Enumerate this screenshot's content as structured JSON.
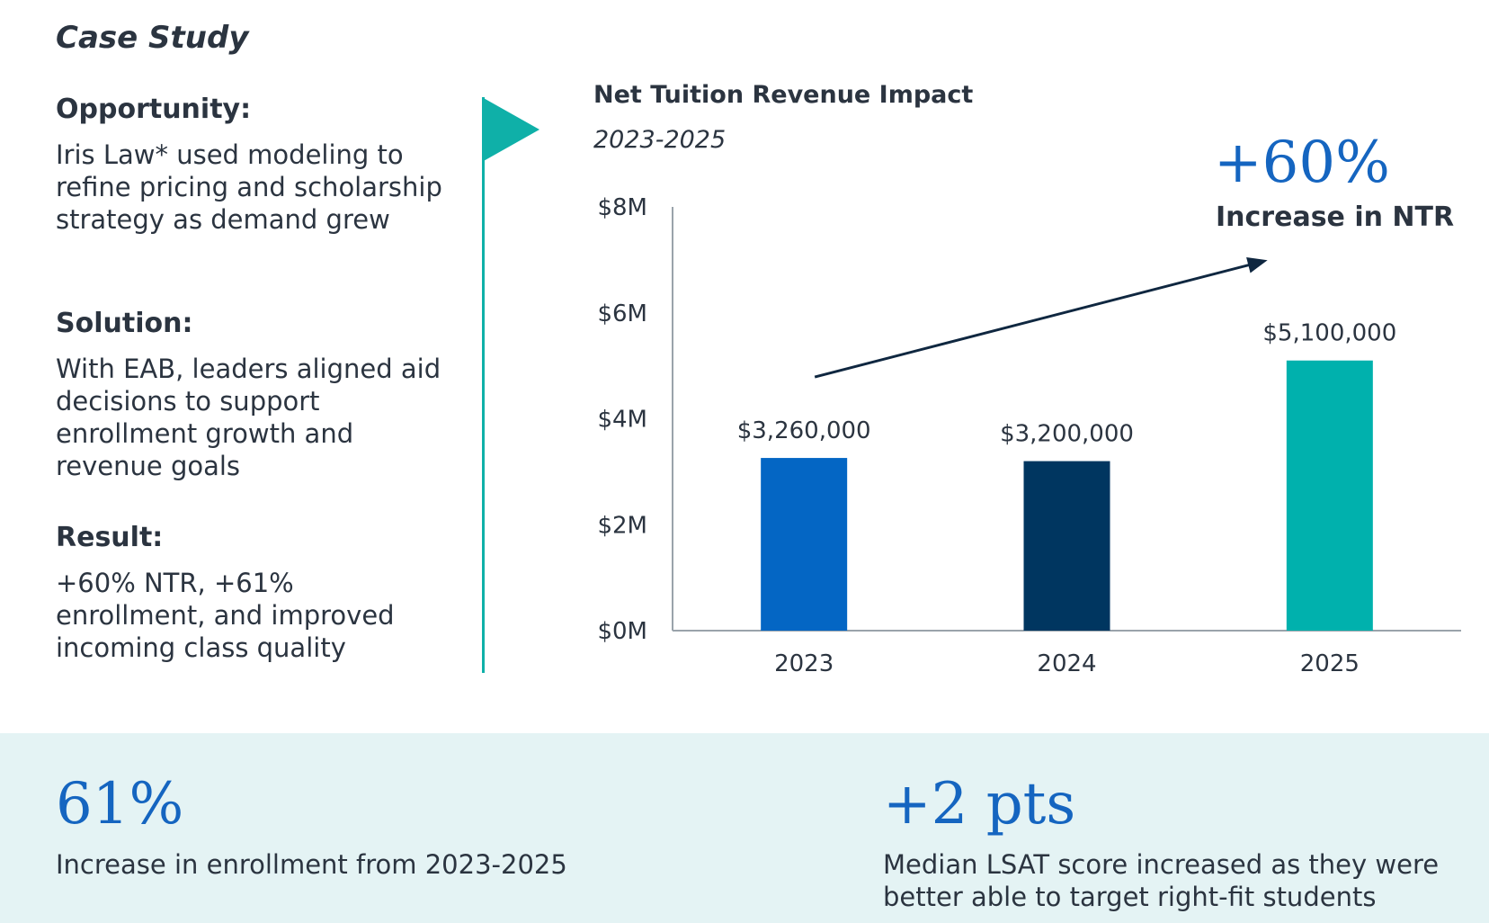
{
  "case_title": "Case Study",
  "sections": [
    {
      "heading": "Opportunity:",
      "body": "Iris Law* used modeling to refine pricing and scholarship strategy as demand grew"
    },
    {
      "heading": "Solution:",
      "body": "With EAB, leaders aligned aid decisions to support enrollment growth and revenue goals"
    },
    {
      "heading": "Result:",
      "body": "+60% NTR, +61% enrollment, and improved incoming class quality"
    }
  ],
  "highlight": {
    "value": "+60%",
    "label": "Increase in NTR"
  },
  "bottom_stats": [
    {
      "value": "61%",
      "text": "Increase in enrollment from 2023-2025"
    },
    {
      "value": "+2 pts",
      "text": "Median LSAT score increased as they were better able to target right-fit students"
    }
  ],
  "colors": {
    "accent_teal": "#0fb0a8",
    "blue": "#1565c0",
    "bar_2023": "#0466c4",
    "bar_2024": "#003660",
    "bar_2025": "#00b1ad",
    "panel_bg": "#e4f3f4"
  },
  "chart_data": {
    "type": "bar",
    "title": "Net Tuition Revenue Impact",
    "subtitle": "2023-2025",
    "categories": [
      "2023",
      "2024",
      "2025"
    ],
    "values": [
      3260000,
      3200000,
      5100000
    ],
    "data_labels": [
      "$3,260,000",
      "$3,200,000",
      "$5,100,000"
    ],
    "bar_colors": [
      "#0466c4",
      "#003660",
      "#00b1ad"
    ],
    "ylim": [
      0,
      8000000
    ],
    "y_ticks": [
      0,
      2000000,
      4000000,
      6000000,
      8000000
    ],
    "y_tick_labels": [
      "$0M",
      "$2M",
      "$4M",
      "$6M",
      "$8M"
    ],
    "grid": false,
    "annotation": "trend arrow rising toward 2025"
  }
}
